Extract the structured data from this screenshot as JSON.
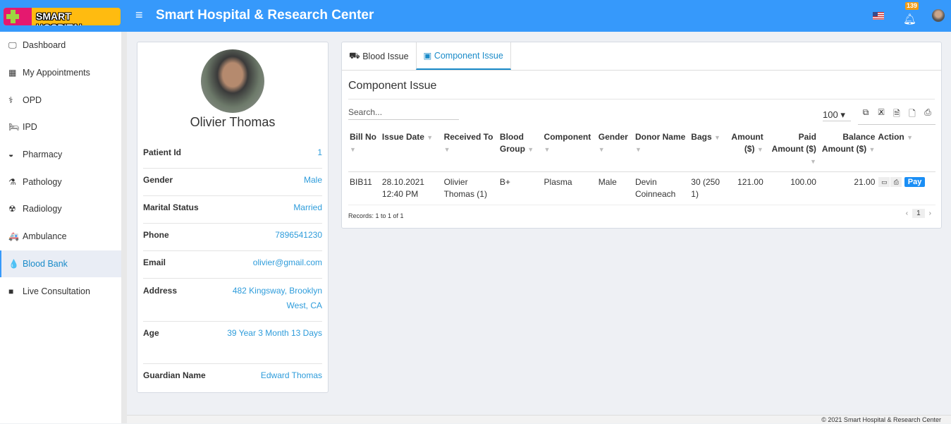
{
  "header": {
    "logo_text": "SMART HOSPITAL",
    "title": "Smart Hospital & Research Center",
    "notification_count": "139"
  },
  "sidebar": {
    "items": [
      {
        "label": "Dashboard",
        "icon": "🖵"
      },
      {
        "label": "My Appointments",
        "icon": "▦"
      },
      {
        "label": "OPD",
        "icon": "⚕"
      },
      {
        "label": "IPD",
        "icon": "🛏"
      },
      {
        "label": "Pharmacy",
        "icon": "◒"
      },
      {
        "label": "Pathology",
        "icon": "⚗"
      },
      {
        "label": "Radiology",
        "icon": "☢"
      },
      {
        "label": "Ambulance",
        "icon": "🚑"
      },
      {
        "label": "Blood Bank",
        "icon": "💧"
      },
      {
        "label": "Live Consultation",
        "icon": "■"
      }
    ]
  },
  "profile": {
    "name": "Olivier Thomas",
    "rows": [
      {
        "label": "Patient Id",
        "value": "1"
      },
      {
        "label": "Gender",
        "value": "Male"
      },
      {
        "label": "Marital Status",
        "value": "Married"
      },
      {
        "label": "Phone",
        "value": "7896541230"
      },
      {
        "label": "Email",
        "value": "olivier@gmail.com"
      },
      {
        "label": "Address",
        "value": "482 Kingsway, Brooklyn West, CA"
      },
      {
        "label": "Age",
        "value": "39 Year 3 Month 13 Days"
      },
      {
        "label": "Guardian Name",
        "value": "Edward Thomas"
      }
    ]
  },
  "tabs": [
    {
      "label": "Blood Issue"
    },
    {
      "label": "Component Issue"
    }
  ],
  "content": {
    "title": "Component Issue",
    "search_placeholder": "Search...",
    "page_size": "100",
    "records": "Records: 1 to 1 of 1",
    "page": "1",
    "pay_label": "Pay"
  },
  "table": {
    "columns": [
      "Bill No",
      "Issue Date",
      "Received To",
      "Blood Group",
      "Component",
      "Gender",
      "Donor Name",
      "Bags",
      "Amount ($)",
      "Paid Amount ($)",
      "Balance Amount ($)",
      "Action"
    ],
    "rows": [
      [
        "BIB11",
        "28.10.2021 12:40 PM",
        "Olivier Thomas (1)",
        "B+",
        "Plasma",
        "Male",
        "Devin Coinneach",
        "30 (250 1)",
        "121.00",
        "100.00",
        "21.00"
      ]
    ]
  },
  "footer": {
    "copyright": "© 2021 Smart Hospital & Research Center"
  },
  "colors": {
    "header": "#3699fb",
    "accent": "#1a8bc9",
    "link": "#2e9cdb"
  }
}
